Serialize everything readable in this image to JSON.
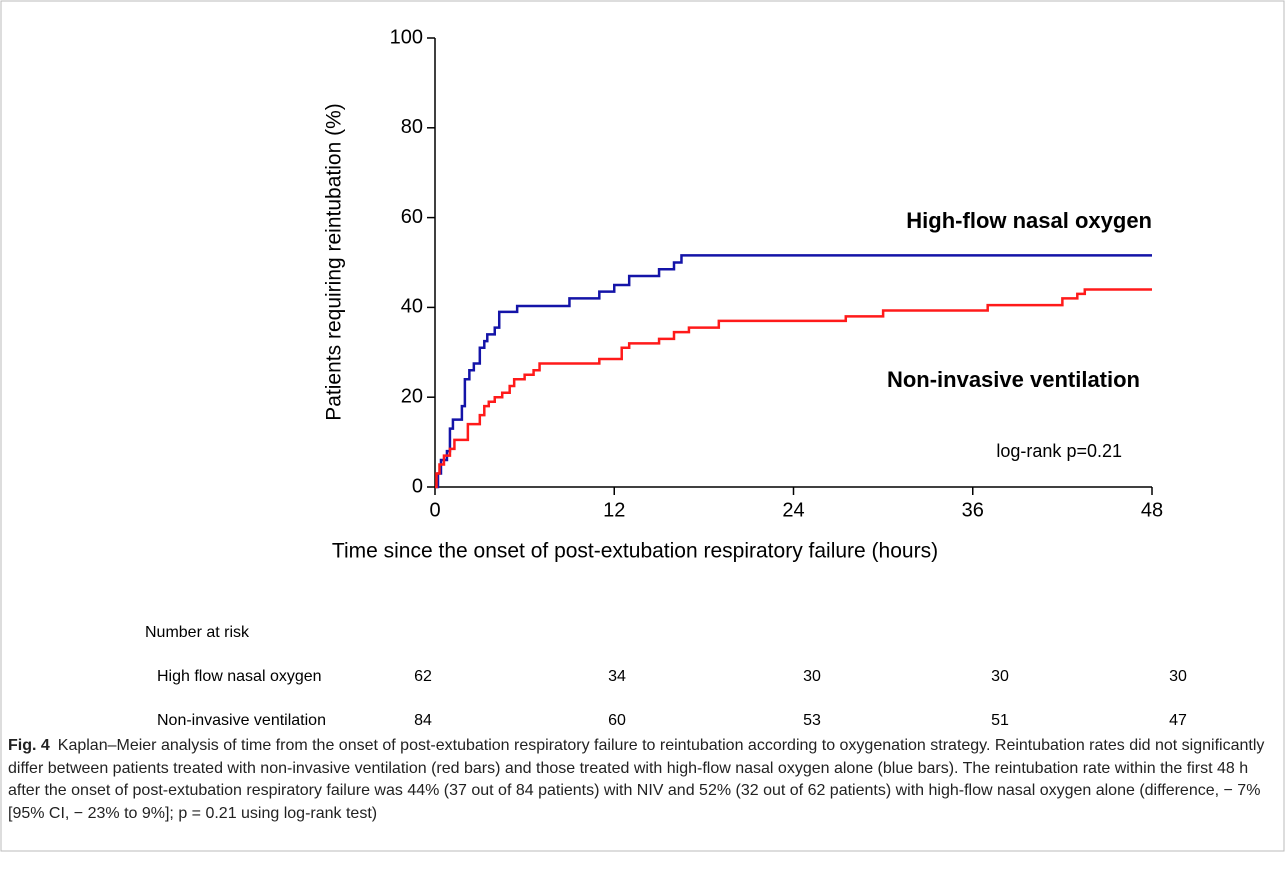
{
  "chart_data": {
    "type": "step",
    "xlabel": "Time since the onset of post-extubation respiratory failure (hours)",
    "ylabel": "Patients requiring reintubation (%)",
    "xlim": [
      0,
      48
    ],
    "xticks": [
      0,
      12,
      24,
      36,
      48
    ],
    "ylim": [
      0,
      100
    ],
    "yticks": [
      0,
      20,
      40,
      60,
      80,
      100
    ],
    "series": [
      {
        "name": "High-flow nasal oxygen",
        "color": "#1414a8",
        "x": [
          0,
          0.2,
          0.4,
          0.8,
          1.0,
          1.2,
          1.8,
          2.0,
          2.3,
          2.6,
          3.0,
          3.3,
          3.5,
          4.0,
          4.3,
          5.5,
          9.0,
          11.0,
          12.0,
          13.0,
          15.0,
          16.0,
          16.5,
          48
        ],
        "values": [
          0,
          3,
          6,
          8,
          13,
          15,
          18,
          24,
          26,
          27.5,
          31,
          32.5,
          34,
          35.5,
          39,
          40.3,
          42,
          43.5,
          45,
          47,
          48.5,
          50,
          51.6,
          51.6
        ]
      },
      {
        "name": "Non-invasive ventilation",
        "color": "#ff1a1a",
        "x": [
          0,
          0.1,
          0.3,
          0.6,
          1.0,
          1.3,
          2.2,
          3.0,
          3.3,
          3.6,
          4.0,
          4.5,
          5.0,
          5.3,
          6.0,
          6.6,
          7.0,
          11.0,
          12.5,
          13.0,
          15.0,
          16.0,
          17.0,
          19.0,
          27.5,
          30.0,
          37.0,
          42.0,
          43.0,
          43.5,
          48
        ],
        "values": [
          0,
          3,
          5,
          7,
          8.5,
          10.5,
          14,
          16,
          18,
          19,
          20,
          21,
          22.5,
          24,
          25,
          26,
          27.5,
          28.5,
          31,
          32,
          33,
          34.5,
          35.5,
          37,
          38,
          39.3,
          40.5,
          42,
          43,
          44,
          44
        ]
      }
    ],
    "annotations": [
      "log-rank p=0.21"
    ]
  },
  "risk_table": {
    "title": "Number at risk",
    "rows": [
      {
        "label": "High flow  nasal oxygen",
        "counts": [
          62,
          34,
          30,
          30,
          30
        ]
      },
      {
        "label": "Non-invasive ventilation",
        "counts": [
          84,
          60,
          53,
          51,
          47
        ]
      }
    ]
  },
  "caption": {
    "label": "Fig. 4",
    "text": "Kaplan–Meier analysis of time from the onset of post-extubation respiratory failure to reintubation according to oxygenation strategy. Reintubation rates did not significantly differ between patients treated with non-invasive ventilation (red bars) and those treated with high-flow nasal oxygen alone (blue bars). The reintubation rate within the first 48 h after the onset of post-extubation respiratory failure was 44% (37 out of 84 patients) with NIV and 52% (32 out of 62 patients) with high-flow nasal oxygen alone (difference, − 7% [95% CI, − 23% to 9%]; p = 0.21 using log-rank test)"
  }
}
